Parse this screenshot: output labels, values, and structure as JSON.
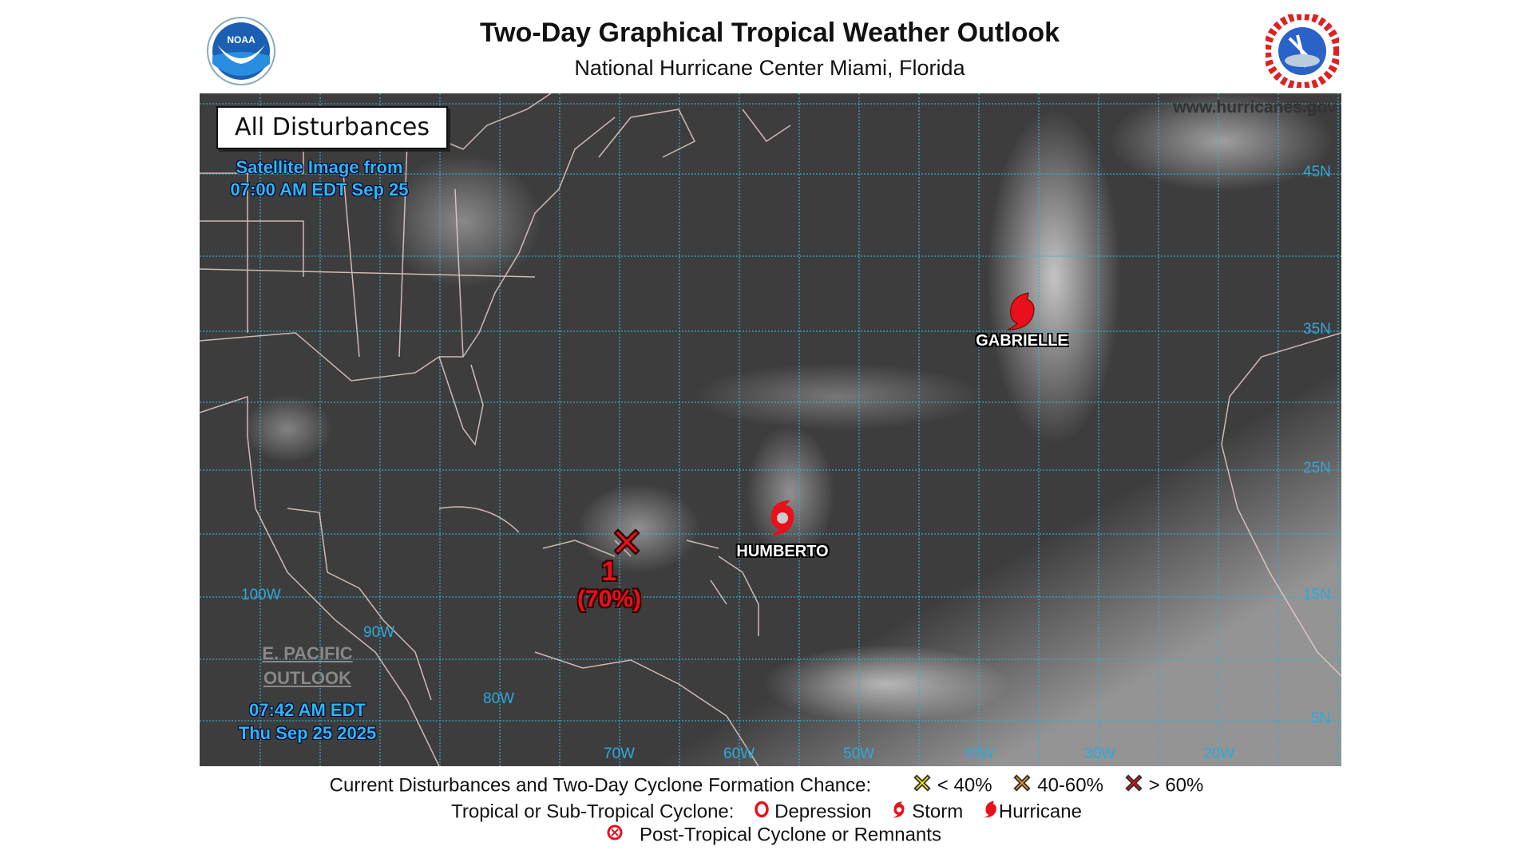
{
  "header": {
    "title": "Two-Day Graphical Tropical Weather Outlook",
    "subtitle": "National Hurricane Center  Miami, Florida",
    "left_logo": "NOAA",
    "right_logo": "NATIONAL WEATHER SERVICE"
  },
  "map": {
    "panel_title": "All Disturbances",
    "satellite_line1": "Satellite Image from",
    "satellite_line2": "07:00 AM EDT Sep 25",
    "website": "www.hurricanes.gov",
    "epac_line1": "E. PACIFIC",
    "epac_line2": "OUTLOOK",
    "issue_time": "07:42 AM EDT",
    "issue_date": "Thu Sep 25 2025",
    "lat_labels": [
      "45N",
      "35N",
      "25N",
      "15N",
      "5N"
    ],
    "lon_labels": [
      "100W",
      "90W",
      "80W",
      "70W",
      "60W",
      "50W",
      "40W",
      "30W",
      "20W"
    ],
    "systems": [
      {
        "name": "GABRIELLE",
        "type": "hurricane",
        "icon": "hurricane-icon"
      },
      {
        "name": "HUMBERTO",
        "type": "storm",
        "icon": "tropical-storm-icon"
      }
    ],
    "disturbances": [
      {
        "id": "1",
        "chance": "(70%)",
        "category": "> 60%",
        "color": "#e8101a"
      }
    ]
  },
  "legend": {
    "row1_label": "Current Disturbances and Two-Day Cyclone Formation Chance:",
    "low": "< 40%",
    "low_color": "#f5f500",
    "mid": "40-60%",
    "mid_color": "#f5901e",
    "high": "> 60%",
    "high_color": "#e8101a",
    "row2_label": "Tropical or Sub-Tropical Cyclone:",
    "depression": "Depression",
    "storm": "Storm",
    "hurricane": "Hurricane",
    "post_tropical": "Post-Tropical Cyclone or Remnants"
  }
}
